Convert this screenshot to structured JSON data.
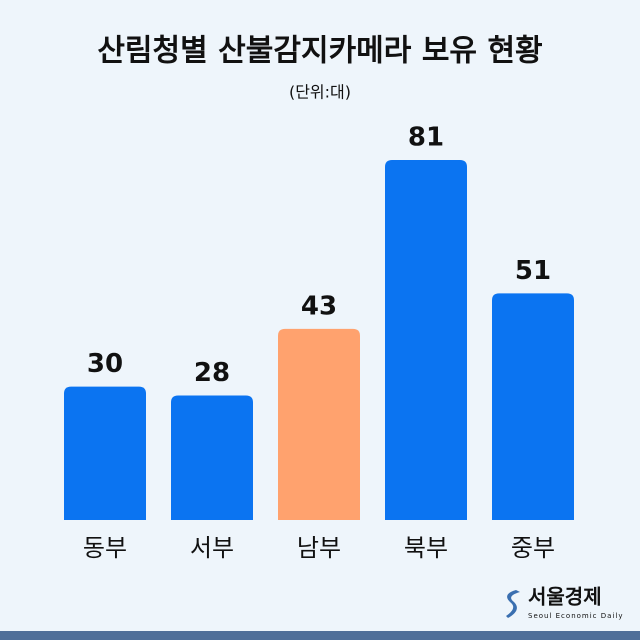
{
  "chart_data": {
    "type": "bar",
    "title": "산림청별 산불감지카메라 보유 현황",
    "subtitle": "(단위:대)",
    "categories": [
      "동부",
      "서부",
      "남부",
      "북부",
      "중부"
    ],
    "values": [
      30,
      28,
      43,
      81,
      51
    ],
    "colors": [
      "#0b74f1",
      "#0b74f1",
      "#ffa26e",
      "#0b74f1",
      "#0b74f1"
    ]
  },
  "logo": {
    "name": "서울경제",
    "tagline": "Seoul Economic Daily"
  }
}
